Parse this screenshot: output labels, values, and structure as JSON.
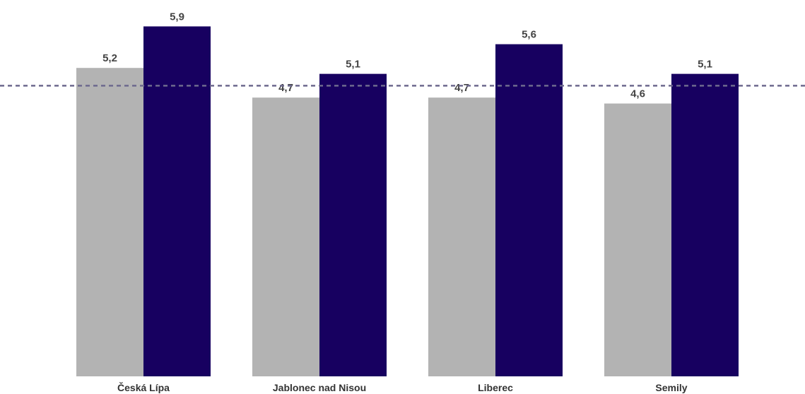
{
  "chart_data": {
    "type": "bar",
    "categories": [
      "Česká Lípa",
      "Jablonec nad Nisou",
      "Liberec",
      "Semily"
    ],
    "series": [
      {
        "values": [
          5.2,
          4.7,
          4.7,
          4.6
        ],
        "value_labels": [
          "5,2",
          "4,7",
          "4,7",
          "4,6"
        ],
        "color": "#b3b3b3"
      },
      {
        "values": [
          5.9,
          5.1,
          5.6,
          5.1
        ],
        "value_labels": [
          "5,9",
          "5,1",
          "5,6",
          "5,1"
        ],
        "color": "#170060"
      }
    ],
    "reference_line": {
      "value": 4.9,
      "style": "dashed",
      "color": "#6e6a8e"
    },
    "ylim": [
      0,
      6.2
    ],
    "grid": false,
    "legend": "none"
  }
}
